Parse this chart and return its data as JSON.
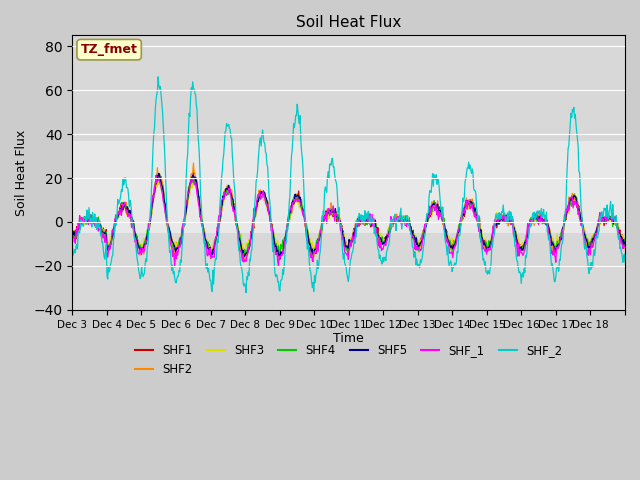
{
  "title": "Soil Heat Flux",
  "ylabel": "Soil Heat Flux",
  "xlabel": "Time",
  "ylim": [
    -40,
    85
  ],
  "series_names": [
    "SHF1",
    "SHF2",
    "SHF3",
    "SHF4",
    "SHF5",
    "SHF_1",
    "SHF_2"
  ],
  "series_colors": [
    "#cc0000",
    "#ff8800",
    "#dddd00",
    "#00cc00",
    "#000080",
    "#ff00ff",
    "#00cccc"
  ],
  "annotation_text": "TZ_fmet",
  "annotation_color": "#880000",
  "annotation_bg": "#ffffcc",
  "annotation_edge": "#999944",
  "bg_color": "#d8d8d8",
  "light_band_color": "#e8e8e8",
  "grid_color": "#ffffff",
  "n_days": 16,
  "n_per_day": 48,
  "figwidth": 6.4,
  "figheight": 4.8,
  "dpi": 100
}
